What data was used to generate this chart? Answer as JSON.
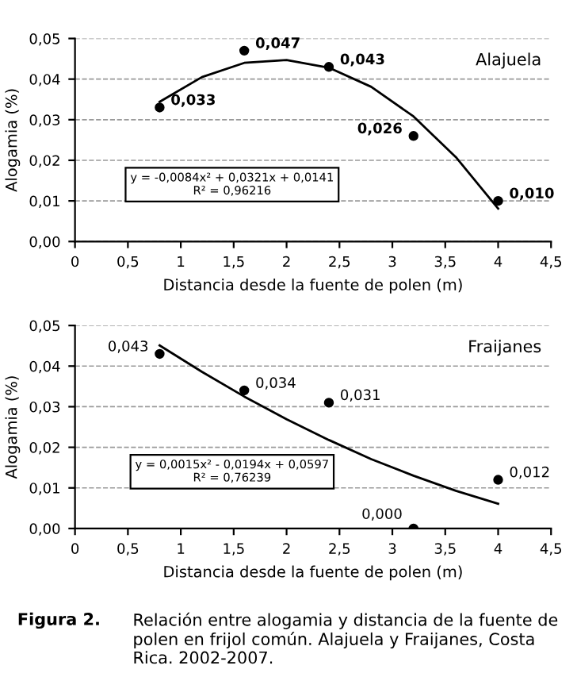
{
  "chart_data": [
    {
      "type": "scatter",
      "xlabel": "Distancia desde la fuente de polen (m)",
      "ylabel": "Alogamia (%)",
      "x": [
        0.8,
        1.6,
        2.4,
        3.2,
        4.0
      ],
      "series": [
        {
          "color": "#000000",
          "marker": "circle",
          "values": [
            0.033,
            0.047,
            0.043,
            0.026,
            0.01
          ],
          "value_labels": [
            "0,033",
            "0,047",
            "0,043",
            "0,026",
            "0,010"
          ]
        },
        {
          "type": "line",
          "color": "#000000",
          "marker": "none",
          "line_style": "solid",
          "x": [
            0.8,
            1.2,
            1.6,
            2.0,
            2.4,
            2.8,
            3.2,
            3.6,
            4.0
          ],
          "values": [
            0.0344,
            0.0405,
            0.044,
            0.0447,
            0.0428,
            0.0381,
            0.0308,
            0.0208,
            0.0081
          ]
        }
      ],
      "xlim": [
        0,
        4.5
      ],
      "xticks": [
        0,
        {
          "value": 0.5,
          "label": "0,5"
        },
        1,
        {
          "value": 1.5,
          "label": "1,5"
        },
        2,
        {
          "value": 2.5,
          "label": "2,5"
        },
        3,
        {
          "value": 3.5,
          "label": "3,5"
        },
        4,
        {
          "value": 4.5,
          "label": "4,5"
        }
      ],
      "ylim": [
        0,
        0.05
      ],
      "yticks": [
        {
          "value": 0,
          "label": "0,00"
        },
        {
          "value": 0.01,
          "label": "0,01"
        },
        {
          "value": 0.02,
          "label": "0,02"
        },
        {
          "value": 0.03,
          "label": "0,03"
        },
        {
          "value": 0.04,
          "label": "0,04"
        },
        {
          "value": 0.05,
          "label": "0,05"
        }
      ],
      "grid": "y",
      "legend": false,
      "annotations": [
        "Alajuela",
        "y = -0,0084x² + 0,0321x + 0,0141\nR² = 0,96216"
      ]
    },
    {
      "type": "scatter",
      "xlabel": "Distancia desde la fuente de polen (m)",
      "ylabel": "Alogamia (%)",
      "x": [
        0.8,
        1.6,
        2.4,
        3.2,
        4.0
      ],
      "series": [
        {
          "color": "#000000",
          "marker": "circle",
          "values": [
            0.043,
            0.034,
            0.031,
            0.0,
            0.012
          ],
          "value_labels": [
            "0,043",
            "0,034",
            "0,031",
            "0,000",
            "0,012"
          ]
        },
        {
          "type": "line",
          "color": "#000000",
          "marker": "none",
          "line_style": "solid",
          "x": [
            0.8,
            1.2,
            1.6,
            2.0,
            2.4,
            2.8,
            3.2,
            3.6,
            4.0
          ],
          "values": [
            0.0451,
            0.0386,
            0.0325,
            0.0269,
            0.0218,
            0.0171,
            0.013,
            0.0093,
            0.0061
          ]
        }
      ],
      "xlim": [
        0,
        4.5
      ],
      "xticks": [
        0,
        {
          "value": 0.5,
          "label": "0,5"
        },
        1,
        {
          "value": 1.5,
          "label": "1,5"
        },
        2,
        {
          "value": 2.5,
          "label": "2,5"
        },
        3,
        {
          "value": 3.5,
          "label": "3,5"
        },
        4,
        {
          "value": 4.5,
          "label": "4,5"
        }
      ],
      "ylim": [
        0,
        0.05
      ],
      "yticks": [
        {
          "value": 0,
          "label": "0,00"
        },
        {
          "value": 0.01,
          "label": "0,01"
        },
        {
          "value": 0.02,
          "label": "0,02"
        },
        {
          "value": 0.03,
          "label": "0,03"
        },
        {
          "value": 0.04,
          "label": "0,04"
        },
        {
          "value": 0.05,
          "label": "0,05"
        }
      ],
      "grid": "y",
      "legend": false,
      "annotations": [
        "Fraijanes",
        "y = 0,0015x² - 0,0194x + 0,0597\nR² = 0,76239",
        "Figura 2.",
        "Relación entre alogamia y distancia de la fuente de polen en frijol común. Alajuela y Fraijanes, Costa Rica. 2002-2007."
      ]
    }
  ]
}
